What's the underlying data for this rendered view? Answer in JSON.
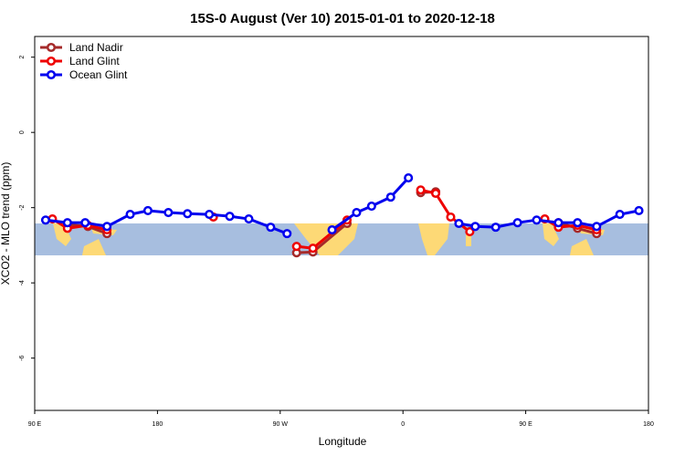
{
  "chart_data": {
    "type": "line",
    "title": "15S-0 August (Ver 10)   2015-01-01 to 2020-12-18",
    "x_label": "Longitude",
    "y_label": "XCO2 - MLO trend (ppm)",
    "xlim": [
      90,
      540
    ],
    "ylim": [
      -7.39,
      2.55
    ],
    "xticks": [
      {
        "value": 90,
        "label": "90 E"
      },
      {
        "value": 180,
        "label": "180"
      },
      {
        "value": 270,
        "label": "90 W"
      },
      {
        "value": 360,
        "label": "0"
      },
      {
        "value": 450,
        "label": "90 E"
      },
      {
        "value": 540,
        "label": "180"
      }
    ],
    "yticks": [
      -6,
      -4,
      -2,
      0,
      2
    ],
    "legend": "top-left",
    "series": [
      {
        "name": "Land Nadir",
        "color": "#a52a2a",
        "x": [
          114,
          129,
          143,
          null,
          282,
          294,
          319,
          null,
          373,
          384,
          null,
          474,
          488,
          502
        ],
        "values": [
          -2.45,
          -2.5,
          -2.69,
          null,
          -3.2,
          -3.18,
          -2.42,
          null,
          -1.6,
          -1.58,
          null,
          -2.4,
          -2.55,
          -2.69
        ]
      },
      {
        "name": "Land Glint",
        "color": "#ee0000",
        "x": [
          103,
          114,
          129,
          143,
          null,
          221,
          null,
          282,
          294,
          319,
          null,
          373,
          384,
          395,
          409,
          null,
          464,
          474,
          488,
          502
        ],
        "values": [
          -2.3,
          -2.55,
          -2.47,
          -2.59,
          null,
          -2.25,
          null,
          -3.03,
          -3.08,
          -2.33,
          null,
          -1.53,
          -1.62,
          -2.25,
          -2.64,
          null,
          -2.3,
          -2.52,
          -2.47,
          -2.59
        ]
      },
      {
        "name": "Ocean Glint",
        "color": "#0000ee",
        "x": [
          98,
          114,
          127,
          143,
          160,
          173,
          188,
          202,
          218,
          233,
          247,
          263,
          275,
          null,
          308,
          326,
          337,
          351,
          364,
          null,
          401,
          413,
          428,
          444,
          458,
          474,
          488,
          502,
          519,
          533
        ],
        "values": [
          -2.33,
          -2.4,
          -2.4,
          -2.5,
          -2.18,
          -2.08,
          -2.13,
          -2.16,
          -2.18,
          -2.23,
          -2.3,
          -2.52,
          -2.69,
          null,
          -2.59,
          -2.13,
          -1.96,
          -1.72,
          -1.21,
          null,
          -2.42,
          -2.5,
          -2.52,
          -2.4,
          -2.33,
          -2.4,
          -2.4,
          -2.5,
          -2.18,
          -2.08
        ]
      }
    ]
  }
}
